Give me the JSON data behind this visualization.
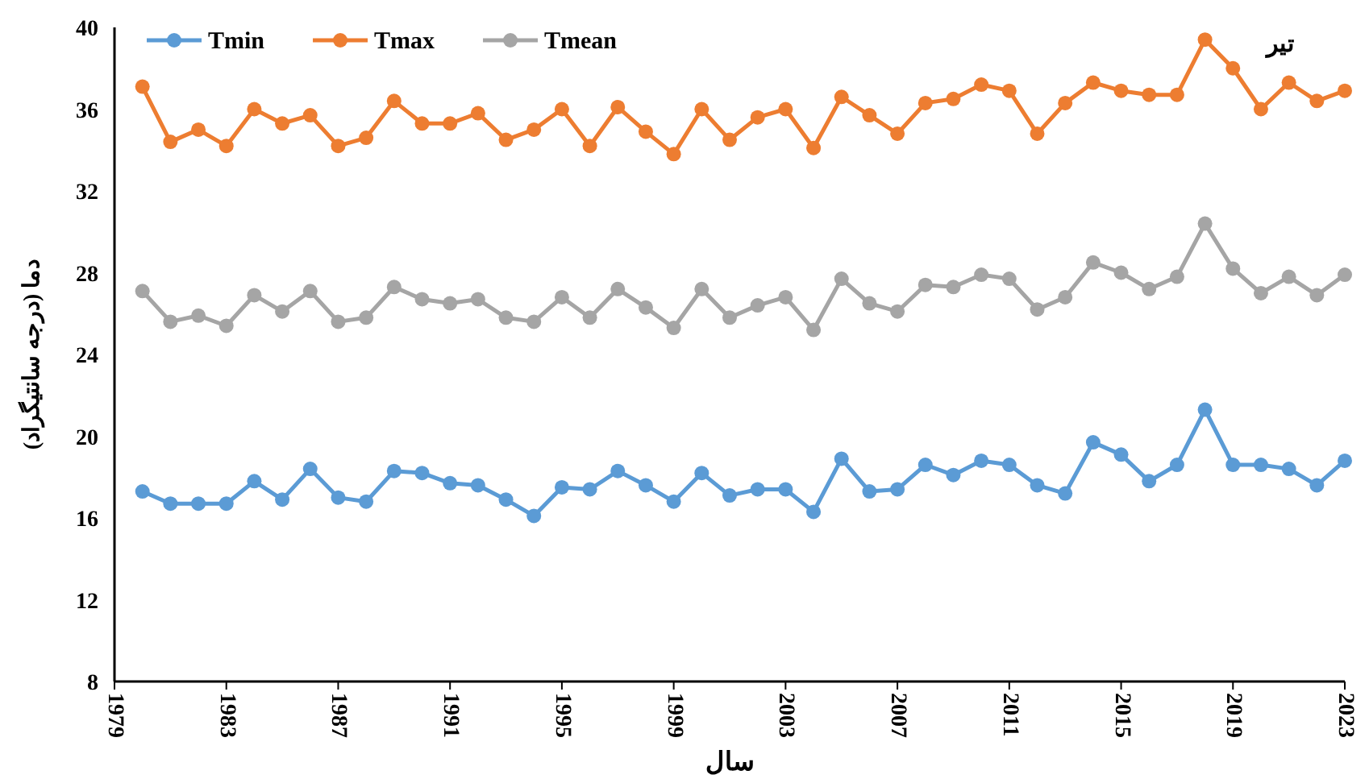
{
  "chart_data": {
    "type": "line",
    "title": "تیر",
    "xlabel": "سال",
    "ylabel": "دما (درجه سانتیگراد)",
    "x": [
      1980,
      1981,
      1982,
      1983,
      1984,
      1985,
      1986,
      1987,
      1988,
      1989,
      1990,
      1991,
      1992,
      1993,
      1994,
      1995,
      1996,
      1997,
      1998,
      1999,
      2000,
      2001,
      2002,
      2003,
      2004,
      2005,
      2006,
      2007,
      2008,
      2009,
      2010,
      2011,
      2012,
      2013,
      2014,
      2015,
      2016,
      2017,
      2018,
      2019,
      2020,
      2021,
      2022,
      2023
    ],
    "series": [
      {
        "name": "Tmin",
        "color": "#5b9bd5",
        "values": [
          17.3,
          16.7,
          16.7,
          16.7,
          17.8,
          16.9,
          18.4,
          17.0,
          16.8,
          18.3,
          18.2,
          17.7,
          17.6,
          16.9,
          16.1,
          17.5,
          17.4,
          18.3,
          17.6,
          16.8,
          18.2,
          17.1,
          17.4,
          17.4,
          16.3,
          18.9,
          17.3,
          17.4,
          18.6,
          18.1,
          18.8,
          18.6,
          17.6,
          17.2,
          19.7,
          19.1,
          17.8,
          18.6,
          21.3,
          18.6,
          18.6,
          18.4,
          17.6,
          18.8
        ]
      },
      {
        "name": "Tmax",
        "color": "#ed7d31",
        "values": [
          37.1,
          34.4,
          35.0,
          34.2,
          36.0,
          35.3,
          35.7,
          34.2,
          34.6,
          36.4,
          35.3,
          35.3,
          35.8,
          34.5,
          35.0,
          36.0,
          34.2,
          36.1,
          34.9,
          33.8,
          36.0,
          34.5,
          35.6,
          36.0,
          34.1,
          36.6,
          35.7,
          34.8,
          36.3,
          36.5,
          37.2,
          36.9,
          34.8,
          36.3,
          37.3,
          36.9,
          36.7,
          36.7,
          39.4,
          38.0,
          36.0,
          37.3,
          36.4,
          36.9
        ]
      },
      {
        "name": "Tmean",
        "color": "#a5a5a5",
        "values": [
          27.1,
          25.6,
          25.9,
          25.4,
          26.9,
          26.1,
          27.1,
          25.6,
          25.8,
          27.3,
          26.7,
          26.5,
          26.7,
          25.8,
          25.6,
          26.8,
          25.8,
          27.2,
          26.3,
          25.3,
          27.2,
          25.8,
          26.4,
          26.8,
          25.2,
          27.7,
          26.5,
          26.1,
          27.4,
          27.3,
          27.9,
          27.7,
          26.2,
          26.8,
          28.5,
          28.0,
          27.2,
          27.8,
          30.4,
          28.2,
          27.0,
          27.8,
          26.9,
          27.9
        ]
      }
    ],
    "xlim": [
      1979,
      2023
    ],
    "xticks": [
      1979,
      1983,
      1987,
      1991,
      1995,
      1999,
      2003,
      2007,
      2011,
      2015,
      2019,
      2023
    ],
    "ylim": [
      8,
      40
    ],
    "yticks": [
      8,
      12,
      16,
      20,
      24,
      28,
      32,
      36,
      40
    ],
    "grid": false,
    "legend": "top left",
    "marker": "circle",
    "line_style": "solid"
  }
}
